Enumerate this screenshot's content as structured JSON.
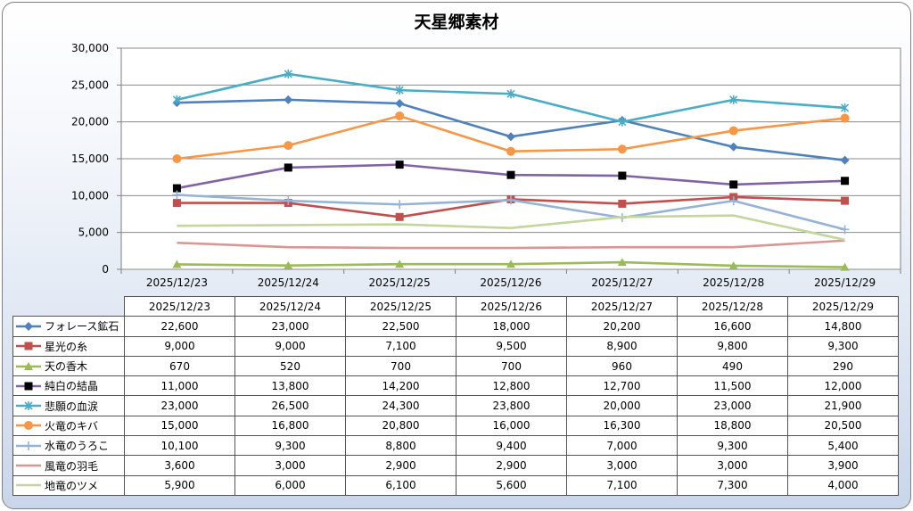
{
  "chart_data": {
    "type": "line",
    "title": "天星郷素材",
    "categories": [
      "2025/12/23",
      "2025/12/24",
      "2025/12/25",
      "2025/12/26",
      "2025/12/27",
      "2025/12/28",
      "2025/12/29"
    ],
    "ylim": [
      0,
      30000
    ],
    "yticks": [
      0,
      5000,
      10000,
      15000,
      20000,
      25000,
      30000
    ],
    "ytick_labels": [
      "0",
      "5,000",
      "10,000",
      "15,000",
      "20,000",
      "25,000",
      "30,000"
    ],
    "grid": true,
    "legend": "data-table",
    "series": [
      {
        "name": "フォレース鉱石",
        "color": "#4f81bd",
        "marker": "diamond",
        "values": [
          22600,
          23000,
          22500,
          18000,
          20200,
          16600,
          14800
        ],
        "labels": [
          "22,600",
          "23,000",
          "22,500",
          "18,000",
          "20,200",
          "16,600",
          "14,800"
        ]
      },
      {
        "name": "星光の糸",
        "color": "#c0504d",
        "marker": "square",
        "values": [
          9000,
          9000,
          7100,
          9500,
          8900,
          9800,
          9300
        ],
        "labels": [
          "9,000",
          "9,000",
          "7,100",
          "9,500",
          "8,900",
          "9,800",
          "9,300"
        ]
      },
      {
        "name": "天の香木",
        "color": "#9bbb59",
        "marker": "triangle",
        "values": [
          670,
          520,
          700,
          700,
          960,
          490,
          290
        ],
        "labels": [
          "670",
          "520",
          "700",
          "700",
          "960",
          "490",
          "290"
        ]
      },
      {
        "name": "純白の結晶",
        "color": "#8064a2",
        "marker": "blacksquare",
        "values": [
          11000,
          13800,
          14200,
          12800,
          12700,
          11500,
          12000
        ],
        "labels": [
          "11,000",
          "13,800",
          "14,200",
          "12,800",
          "12,700",
          "11,500",
          "12,000"
        ]
      },
      {
        "name": "悲願の血涙",
        "color": "#4bacc6",
        "marker": "star",
        "values": [
          23000,
          26500,
          24300,
          23800,
          20000,
          23000,
          21900
        ],
        "labels": [
          "23,000",
          "26,500",
          "24,300",
          "23,800",
          "20,000",
          "23,000",
          "21,900"
        ]
      },
      {
        "name": "火竜のキバ",
        "color": "#f79646",
        "marker": "circle",
        "values": [
          15000,
          16800,
          20800,
          16000,
          16300,
          18800,
          20500
        ],
        "labels": [
          "15,000",
          "16,800",
          "20,800",
          "16,000",
          "16,300",
          "18,800",
          "20,500"
        ]
      },
      {
        "name": "水竜のうろこ",
        "color": "#95b3d7",
        "marker": "plus",
        "values": [
          10100,
          9300,
          8800,
          9400,
          7000,
          9300,
          5400
        ],
        "labels": [
          "10,100",
          "9,300",
          "8,800",
          "9,400",
          "7,000",
          "9,300",
          "5,400"
        ]
      },
      {
        "name": "風竜の羽毛",
        "color": "#d99694",
        "marker": "none",
        "values": [
          3600,
          3000,
          2900,
          2900,
          3000,
          3000,
          3900
        ],
        "labels": [
          "3,600",
          "3,000",
          "2,900",
          "2,900",
          "3,000",
          "3,000",
          "3,900"
        ]
      },
      {
        "name": "地竜のツメ",
        "color": "#c3d69b",
        "marker": "none",
        "values": [
          5900,
          6000,
          6100,
          5600,
          7100,
          7300,
          4000
        ],
        "labels": [
          "5,900",
          "6,000",
          "6,100",
          "5,600",
          "7,100",
          "7,300",
          "4,000"
        ]
      }
    ]
  }
}
